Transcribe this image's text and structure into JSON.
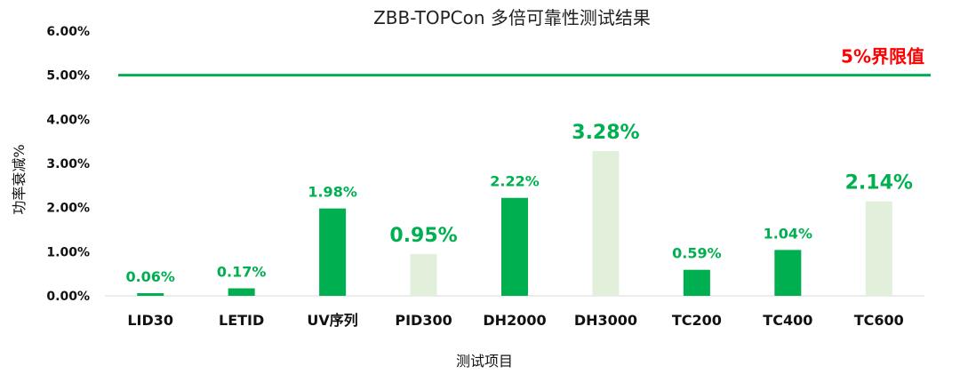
{
  "chart_data": {
    "type": "bar",
    "title": "ZBB-TOPCon 多倍可靠性测试结果",
    "xlabel": "测试项目",
    "ylabel": "功率衰减%",
    "categories": [
      "LID30",
      "LETID",
      "UV序列",
      "PID300",
      "DH2000",
      "DH3000",
      "TC200",
      "TC400",
      "TC600"
    ],
    "values": [
      0.06,
      0.17,
      1.98,
      0.95,
      2.22,
      3.28,
      0.59,
      1.04,
      2.14
    ],
    "data_labels": [
      "0.06%",
      "0.17%",
      "1.98%",
      "0.95%",
      "2.22%",
      "3.28%",
      "0.59%",
      "1.04%",
      "2.14%"
    ],
    "highlighted": [
      false,
      false,
      false,
      true,
      false,
      true,
      false,
      false,
      true
    ],
    "ylim": [
      0,
      6
    ],
    "y_ticks": [
      0,
      1,
      2,
      3,
      4,
      5,
      6
    ],
    "y_tick_labels": [
      "0.00%",
      "1.00%",
      "2.00%",
      "3.00%",
      "4.00%",
      "5.00%",
      "6.00%"
    ],
    "reference_line": {
      "value": 5,
      "label": "5%界限值",
      "color": "#00b050",
      "label_color": "#ff0000"
    },
    "colors": {
      "bar": "#00b050",
      "bar_highlight": "#e2efda",
      "data_label": "#00b050",
      "axis_text": "#111111",
      "baseline": "#d9d9d9"
    },
    "grid": false
  }
}
